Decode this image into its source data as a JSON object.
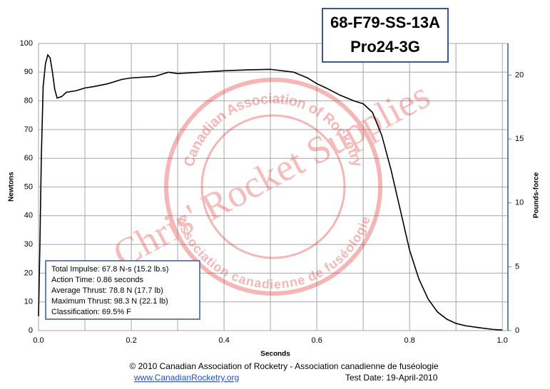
{
  "chart_data": {
    "type": "line",
    "title": "68-F79-SS-13A",
    "subtitle": "Pro24-3G",
    "xlabel": "Seconds",
    "ylabel": "Newtons",
    "y2label": "Pounds-force",
    "x": [
      0.0,
      0.003,
      0.006,
      0.01,
      0.015,
      0.02,
      0.025,
      0.03,
      0.035,
      0.04,
      0.05,
      0.06,
      0.08,
      0.1,
      0.12,
      0.15,
      0.18,
      0.2,
      0.25,
      0.28,
      0.3,
      0.35,
      0.4,
      0.45,
      0.5,
      0.55,
      0.58,
      0.6,
      0.62,
      0.65,
      0.68,
      0.7,
      0.72,
      0.74,
      0.76,
      0.78,
      0.8,
      0.82,
      0.84,
      0.86,
      0.88,
      0.9,
      0.92,
      0.95,
      0.98,
      1.0
    ],
    "values": [
      5,
      30,
      60,
      85,
      93,
      96,
      95,
      90,
      84,
      81,
      81.5,
      83,
      83.5,
      84.5,
      85,
      86,
      87.5,
      88,
      88.5,
      90,
      89.5,
      90,
      90.5,
      90.8,
      91,
      90,
      88,
      86,
      84.5,
      82,
      80,
      79,
      76,
      68,
      56,
      42,
      28,
      18,
      11,
      6.5,
      4,
      2.5,
      1.7,
      1,
      0.4,
      0.2
    ],
    "color": "#000000",
    "xlim": [
      0,
      1.012
    ],
    "xticks": [
      {
        "value": 0,
        "label": "0.0"
      },
      0.2,
      0.4,
      0.6,
      0.8,
      {
        "value": 1,
        "label": "1.0"
      }
    ],
    "xminorticks": [
      0.1,
      0.3,
      0.5,
      0.7,
      0.9
    ],
    "ylim": [
      0,
      100
    ],
    "yticks": [
      0,
      10,
      20,
      30,
      40,
      50,
      60,
      70,
      80,
      90,
      100
    ],
    "y2lim": [
      0,
      22.48
    ],
    "y2ticks": [
      0,
      5,
      10,
      15,
      20
    ],
    "grid": true,
    "stats": [
      "Total Impulse: 67.8 N-s (15.2 lb.s)",
      "Action Time: 0.86 seconds",
      "Average Thrust: 78.8 N (17.7 lb)",
      "Maximum Thrust: 98.3 N (22.1 lb)",
      "Classification: 69.5% F"
    ],
    "watermark": {
      "main": "Chris' Rocket Supplies",
      "ring_top": "Canadian Association of Rocketry",
      "ring_bottom": "Association canadienne de fuséologie"
    },
    "footer": {
      "copyright": "© 2010 Canadian Association of Rocketry - Association canadienne de fuséologie",
      "url": "www.CanadianRocketry.org",
      "test_date": "Test  Date: 19-April-2010"
    }
  }
}
